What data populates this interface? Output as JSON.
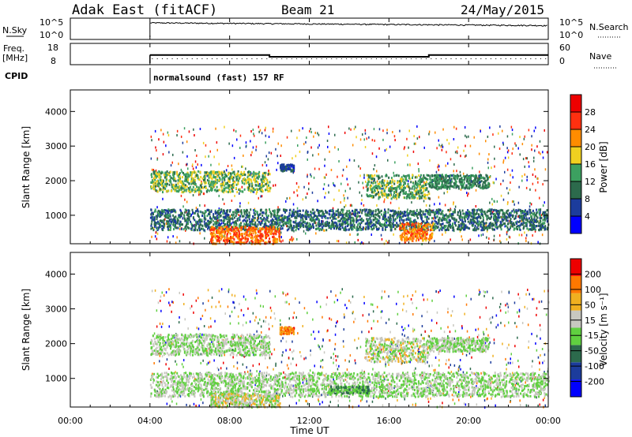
{
  "header": {
    "station": "Adak East (fitACF)",
    "beam": "Beam 21",
    "date": "24/May/2015"
  },
  "noise_panel": {
    "left_label": "N.Sky",
    "right_label": "N.Search",
    "left_ticks": [
      "10^5",
      "10^0"
    ],
    "right_ticks": [
      "10^5",
      "10^0"
    ]
  },
  "freq_panel": {
    "left_label_1": "Freq.",
    "left_label_2": "[MHz]",
    "right_label": "Nave",
    "left_ticks": [
      "18",
      "8"
    ],
    "right_ticks": [
      "60",
      "0"
    ]
  },
  "cpid": {
    "label": "CPID",
    "program": "normalsound (fast) 157 RF"
  },
  "power_panel": {
    "ylabel": "Slant Range [km]",
    "yticks": [
      "4000",
      "3000",
      "2000",
      "1000"
    ],
    "colorbar_label": "Power [dB]",
    "colorbar_ticks": [
      "28",
      "24",
      "20",
      "16",
      "12",
      "8",
      "4"
    ],
    "colors": [
      "#0000ff",
      "#1c3c9c",
      "#2c6a4c",
      "#3ca060",
      "#f0d020",
      "#ff8c00",
      "#ff3010",
      "#ee0000"
    ]
  },
  "velocity_panel": {
    "ylabel": "Slant Range [km]",
    "yticks": [
      "4000",
      "3000",
      "2000",
      "1000"
    ],
    "colorbar_label": "Velocity [m s⁻¹]",
    "colorbar_ticks": [
      "200",
      "100",
      "50",
      "15",
      "-15",
      "-50",
      "-100",
      "-200"
    ],
    "colors": [
      "#0000ff",
      "#1c3c9c",
      "#2c6a4c",
      "#60d040",
      "#c8c8c0",
      "#f0b020",
      "#ff7800",
      "#ee0000"
    ]
  },
  "xaxis": {
    "label": "Time UT",
    "ticks": [
      "00:00",
      "04:00",
      "08:00",
      "12:00",
      "16:00",
      "20:00",
      "00:00"
    ]
  },
  "chart_data": [
    {
      "type": "line",
      "title": "Adak East (fitACF) Beam 21 24/May/2015",
      "xlabel": "Time UT",
      "x_range_hours": [
        0,
        24
      ],
      "series": [
        {
          "name": "N.Sky",
          "x": [
            4,
            24
          ],
          "y": [
            20000,
            3000
          ]
        },
        {
          "name": "N.Search"
        }
      ],
      "ylabel": "N.Sky",
      "y_scale": "log",
      "ylim": [
        1,
        100000
      ]
    },
    {
      "type": "line",
      "xlabel": "Time UT",
      "ylabel": "Freq. [MHz]",
      "ylim": [
        8,
        18
      ],
      "series": [
        {
          "name": "Freq.",
          "x": [
            4,
            10,
            10,
            18,
            18,
            24
          ],
          "y": [
            12.5,
            12.5,
            11.5,
            11.5,
            12.5,
            12.5
          ]
        },
        {
          "name": "Nave"
        }
      ]
    },
    {
      "type": "heatmap",
      "title": "Power [dB]",
      "xlabel": "Time UT",
      "ylabel": "Slant Range [km]",
      "x_range_hours": [
        0,
        24
      ],
      "ylim": [
        200,
        4600
      ],
      "colorbar_range": [
        0,
        30
      ],
      "colorbar_ticks": [
        4,
        8,
        12,
        16,
        20,
        24,
        28
      ],
      "data_start_hour": 4,
      "echo_bands": [
        {
          "t0": 4.0,
          "t1": 10.0,
          "r0": 1700,
          "r1": 2300,
          "power": 14
        },
        {
          "t0": 4.0,
          "t1": 24.0,
          "r0": 600,
          "r1": 1200,
          "power": 9
        },
        {
          "t0": 7.0,
          "t1": 10.5,
          "r0": 200,
          "r1": 700,
          "power": 22
        },
        {
          "t0": 14.8,
          "t1": 18.0,
          "r0": 1500,
          "r1": 2200,
          "power": 13
        },
        {
          "t0": 16.5,
          "t1": 18.2,
          "r0": 300,
          "r1": 800,
          "power": 21
        },
        {
          "t0": 18.0,
          "t1": 21.0,
          "r0": 1800,
          "r1": 2200,
          "power": 11
        },
        {
          "t0": 10.5,
          "t1": 11.2,
          "r0": 2300,
          "r1": 2500,
          "power": 6
        }
      ]
    },
    {
      "type": "heatmap",
      "title": "Velocity [m s⁻¹]",
      "xlabel": "Time UT",
      "ylabel": "Slant Range [km]",
      "x_range_hours": [
        0,
        24
      ],
      "ylim": [
        200,
        4600
      ],
      "colorbar_range": [
        -250,
        250
      ],
      "colorbar_ticks": [
        -200,
        -100,
        -50,
        -15,
        15,
        50,
        100,
        200
      ],
      "data_start_hour": 4,
      "echo_bands": [
        {
          "t0": 4.0,
          "t1": 10.0,
          "r0": 1700,
          "r1": 2300,
          "velocity": 0
        },
        {
          "t0": 4.0,
          "t1": 24.0,
          "r0": 500,
          "r1": 1200,
          "velocity": 0
        },
        {
          "t0": 7.0,
          "t1": 10.5,
          "r0": 200,
          "r1": 600,
          "velocity": 30
        },
        {
          "t0": 14.8,
          "t1": 18.0,
          "r0": 1500,
          "r1": 2200,
          "velocity": 20
        },
        {
          "t0": 18.0,
          "t1": 21.0,
          "r0": 1800,
          "r1": 2200,
          "velocity": 0
        },
        {
          "t0": 13.0,
          "t1": 15.0,
          "r0": 600,
          "r1": 800,
          "velocity": -40
        },
        {
          "t0": 10.5,
          "t1": 11.2,
          "r0": 2300,
          "r1": 2500,
          "velocity": 150
        }
      ]
    }
  ]
}
